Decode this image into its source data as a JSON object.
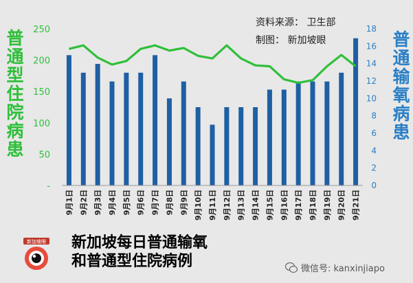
{
  "colors": {
    "background": "#e8e8e8",
    "bars": "#1f5fa3",
    "line": "#2fbf3a",
    "left_title": "#2fbf3a",
    "right_title": "#2a7fc6",
    "left_ticks": "#2fbf3a",
    "right_ticks": "#2a7fc6"
  },
  "credits": {
    "source": "资料来源：  卫生部",
    "made_by": "制图：  新加坡眼"
  },
  "footer": {
    "title_line1": "新加坡每日普通输氧",
    "title_line2": "和普通型住院病例",
    "wechat": "微信号: kanxinjiapo",
    "logo_icon": "newspaper-eye-logo",
    "logo_text": "新加坡眼"
  },
  "chart_data": {
    "type": "bar+line",
    "categories": [
      "9月1日",
      "9月2日",
      "9月3日",
      "9月4日",
      "9月5日",
      "9月6日",
      "9月7日",
      "9月8日",
      "9月9日",
      "9月10日",
      "9月11日",
      "9月12日",
      "9月13日",
      "9月14日",
      "9月15日",
      "9月16日",
      "9月17日",
      "9月18日",
      "9月19日",
      "9月20日",
      "9月21日"
    ],
    "series": [
      {
        "name": "普通型住院病患",
        "type": "bar",
        "axis": "left",
        "values": [
          208,
          180,
          194,
          166,
          180,
          180,
          208,
          139,
          166,
          125,
          97,
          125,
          125,
          125,
          153,
          153,
          166,
          166,
          166,
          180,
          235
        ]
      },
      {
        "name": "普通输氧病患",
        "type": "line",
        "axis": "right",
        "values": [
          15.7,
          16.1,
          14.7,
          13.9,
          14.3,
          15.7,
          16.1,
          15.5,
          15.8,
          14.9,
          14.6,
          16.1,
          14.6,
          13.8,
          13.7,
          12.2,
          11.8,
          12.1,
          13.7,
          15.0,
          13.7
        ]
      }
    ],
    "left_axis": {
      "title": "普通型住院病患",
      "ylim": [
        0,
        250
      ],
      "ticks": [
        "-",
        "50",
        "100",
        "150",
        "200",
        "250"
      ],
      "tick_values": [
        0,
        50,
        100,
        150,
        200,
        250
      ]
    },
    "right_axis": {
      "title": "普通输氧病患",
      "ylim": [
        0,
        18
      ],
      "ticks": [
        0,
        2,
        4,
        6,
        8,
        10,
        12,
        14,
        16,
        18
      ]
    },
    "grid": false,
    "legend": "none"
  }
}
